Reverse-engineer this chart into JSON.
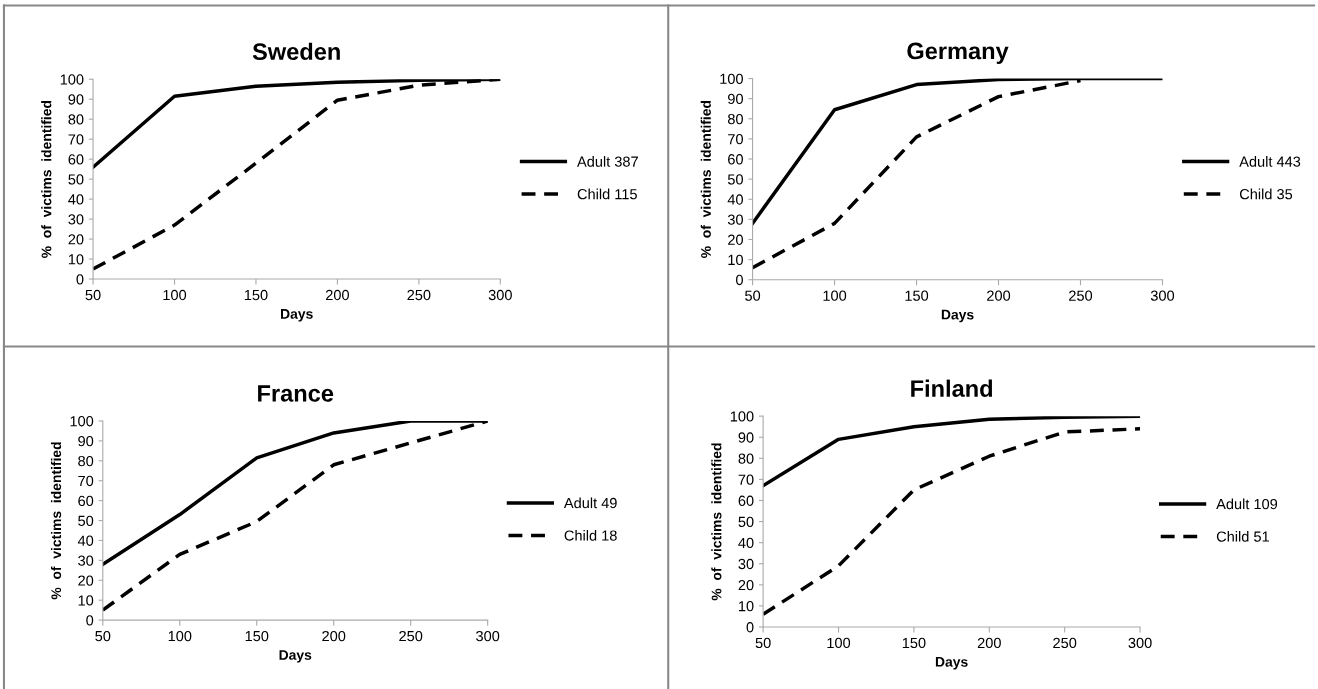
{
  "chart_data": [
    {
      "type": "line",
      "title": "Sweden",
      "xlabel": "Days",
      "ylabel": "%  of  victims  identified",
      "x": [
        50,
        100,
        150,
        200,
        250,
        300
      ],
      "xlim": [
        50,
        300
      ],
      "xticks": [
        50,
        100,
        150,
        200,
        250,
        300
      ],
      "ylim": [
        0,
        100
      ],
      "yticks": [
        0,
        10,
        20,
        30,
        40,
        50,
        60,
        70,
        80,
        90,
        100
      ],
      "grid": false,
      "legend": "right",
      "series": [
        {
          "name": "Adult 387",
          "color": "#000000",
          "line_style": "solid",
          "values": [
            56,
            91.5,
            96.5,
            98.5,
            99.5,
            100
          ]
        },
        {
          "name": "Child 115",
          "color": "#000000",
          "line_style": "dashed",
          "values": [
            5,
            27,
            58,
            89.5,
            97,
            100
          ]
        }
      ]
    },
    {
      "type": "line",
      "title": "Germany",
      "xlabel": "Days",
      "ylabel": "%  of  victims  identified",
      "x": [
        50,
        100,
        150,
        200,
        250,
        300
      ],
      "xlim": [
        50,
        300
      ],
      "xticks": [
        50,
        100,
        150,
        200,
        250,
        300
      ],
      "ylim": [
        0,
        100
      ],
      "yticks": [
        0,
        10,
        20,
        30,
        40,
        50,
        60,
        70,
        80,
        90,
        100
      ],
      "grid": false,
      "legend": "right",
      "series": [
        {
          "name": "Adult 443",
          "color": "#000000",
          "line_style": "solid",
          "values": [
            28,
            84.5,
            97,
            99.5,
            100,
            100
          ]
        },
        {
          "name": "Child 35",
          "color": "#000000",
          "line_style": "dashed",
          "values": [
            6,
            28,
            71,
            91,
            99,
            null
          ]
        }
      ]
    },
    {
      "type": "line",
      "title": "France",
      "xlabel": "Days",
      "ylabel": "%  of  victims  identified",
      "x": [
        50,
        100,
        150,
        200,
        250,
        300
      ],
      "xlim": [
        50,
        300
      ],
      "xticks": [
        50,
        100,
        150,
        200,
        250,
        300
      ],
      "ylim": [
        0,
        100
      ],
      "yticks": [
        0,
        10,
        20,
        30,
        40,
        50,
        60,
        70,
        80,
        90,
        100
      ],
      "grid": false,
      "legend": "right",
      "series": [
        {
          "name": "Adult 49",
          "color": "#000000",
          "line_style": "solid",
          "values": [
            28,
            53,
            81.5,
            94,
            100,
            100
          ]
        },
        {
          "name": "Child 18",
          "color": "#000000",
          "line_style": "dashed",
          "values": [
            5,
            33,
            49.5,
            78,
            89,
            100
          ]
        }
      ]
    },
    {
      "type": "line",
      "title": "Finland",
      "xlabel": "Days",
      "ylabel": "%  of  victims  identified",
      "x": [
        50,
        100,
        150,
        200,
        250,
        300
      ],
      "xlim": [
        50,
        300
      ],
      "xticks": [
        50,
        100,
        150,
        200,
        250,
        300
      ],
      "ylim": [
        0,
        100
      ],
      "yticks": [
        0,
        10,
        20,
        30,
        40,
        50,
        60,
        70,
        80,
        90,
        100
      ],
      "grid": false,
      "legend": "right",
      "series": [
        {
          "name": "Adult 109",
          "color": "#000000",
          "line_style": "solid",
          "values": [
            67,
            89,
            95,
            98.5,
            99.5,
            100
          ]
        },
        {
          "name": "Child 51",
          "color": "#000000",
          "line_style": "dashed",
          "values": [
            6,
            29,
            65,
            81,
            92.5,
            94
          ]
        }
      ]
    }
  ]
}
